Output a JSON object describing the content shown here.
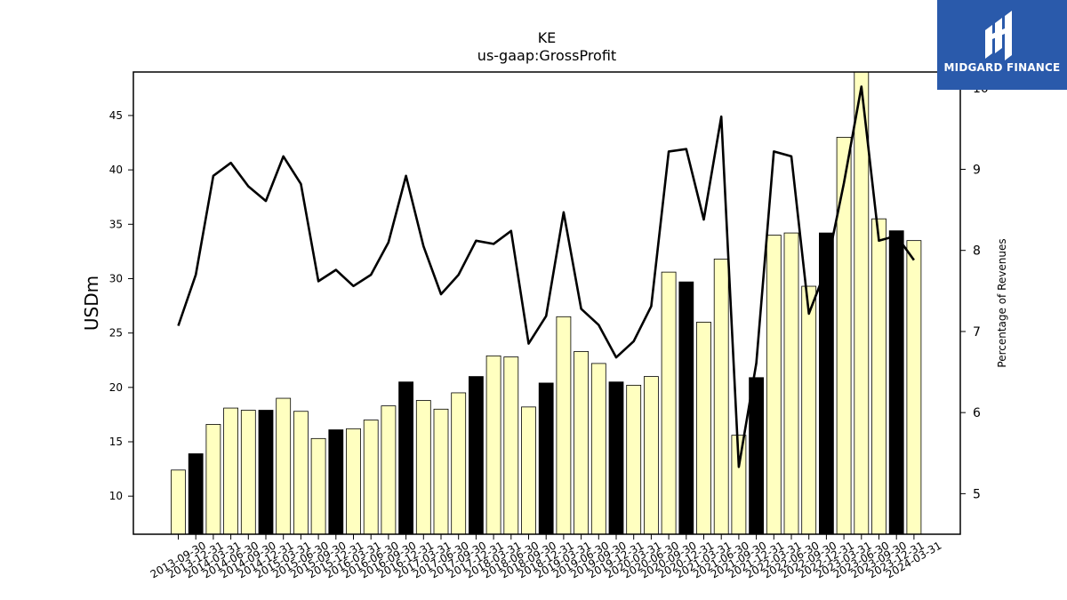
{
  "chart_data": {
    "type": "bar",
    "title": "KE",
    "subtitle": "us-gaap:GrossProfit",
    "ylabel": "USDm",
    "y2label": "Percentage of Revenues",
    "ylim": [
      6.5,
      49
    ],
    "y2lim": [
      4.5,
      10.2
    ],
    "yticks": [
      10,
      15,
      20,
      25,
      30,
      35,
      40,
      45
    ],
    "y2ticks": [
      5,
      6,
      7,
      8,
      9,
      10
    ],
    "categories": [
      "2013-09-30",
      "2013-12-31",
      "2014-03-31",
      "2014-06-30",
      "2014-09-30",
      "2014-12-31",
      "2015-03-31",
      "2015-06-30",
      "2015-09-30",
      "2015-12-31",
      "2016-03-31",
      "2016-06-30",
      "2016-09-30",
      "2016-12-31",
      "2017-03-31",
      "2017-06-30",
      "2017-09-30",
      "2017-12-31",
      "2018-03-31",
      "2018-06-30",
      "2018-09-30",
      "2018-12-31",
      "2019-03-31",
      "2019-06-30",
      "2019-09-30",
      "2019-12-31",
      "2020-03-31",
      "2020-06-30",
      "2020-09-30",
      "2020-12-31",
      "2021-03-31",
      "2021-06-30",
      "2021-09-30",
      "2021-12-31",
      "2022-03-31",
      "2022-06-30",
      "2022-09-30",
      "2022-12-31",
      "2023-03-31",
      "2023-06-30",
      "2023-09-30",
      "2023-12-31",
      "2024-03-31"
    ],
    "series": [
      {
        "type": "bar",
        "values": [
          12.4,
          13.9,
          16.6,
          18.1,
          17.9,
          17.9,
          19.0,
          17.8,
          15.3,
          16.1,
          16.2,
          17.0,
          18.3,
          20.5,
          18.8,
          18.0,
          19.5,
          21.0,
          22.9,
          22.8,
          18.2,
          20.4,
          26.5,
          23.3,
          22.2,
          20.5,
          20.2,
          21.0,
          30.6,
          29.7,
          26.0,
          31.8,
          15.6,
          20.9,
          34.0,
          34.2,
          29.3,
          34.2,
          43.0,
          49.0,
          35.5,
          34.4,
          33.5
        ],
        "highlight": [
          false,
          true,
          false,
          false,
          false,
          true,
          false,
          false,
          false,
          true,
          false,
          false,
          false,
          true,
          false,
          false,
          false,
          true,
          false,
          false,
          false,
          true,
          false,
          false,
          false,
          true,
          false,
          false,
          false,
          true,
          false,
          false,
          false,
          true,
          false,
          false,
          false,
          true,
          false,
          false,
          false,
          true,
          false
        ],
        "color": "#ffffc0",
        "highlight_color": "#000000"
      },
      {
        "type": "line",
        "axis": "right",
        "values": [
          7.07,
          7.7,
          8.92,
          9.08,
          8.79,
          8.61,
          9.16,
          8.82,
          7.62,
          7.76,
          7.56,
          7.7,
          8.1,
          8.92,
          8.05,
          7.46,
          7.7,
          8.12,
          8.08,
          8.24,
          6.85,
          7.19,
          8.47,
          7.28,
          7.08,
          6.68,
          6.88,
          7.31,
          9.22,
          9.25,
          8.38,
          9.65,
          5.33,
          6.61,
          9.22,
          9.16,
          7.22,
          7.78,
          8.83,
          10.02,
          8.12,
          8.18,
          7.88
        ],
        "color": "#000000"
      }
    ]
  },
  "logo": {
    "text": "MIDGARD FINANCE",
    "bg": "#2a5aab"
  }
}
